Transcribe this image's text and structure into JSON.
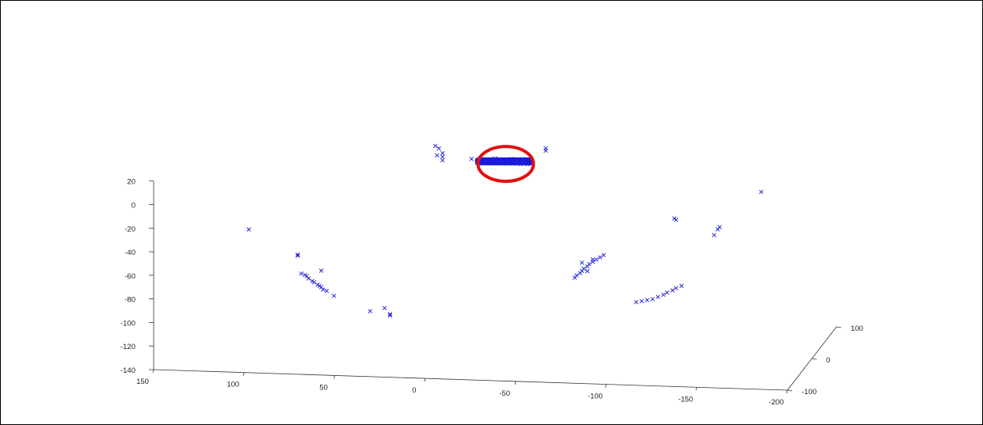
{
  "colors": {
    "marker": "#1a1adb",
    "highlight": "#e01010",
    "axis": "#333333"
  },
  "chart_data": {
    "type": "scatter",
    "projection": "3d",
    "marker": "x",
    "grid": false,
    "axes": {
      "x": {
        "lim": [
          -200,
          150
        ],
        "reversed": true,
        "ticks": [
          150,
          100,
          50,
          0,
          -50,
          -100,
          -150,
          -200
        ]
      },
      "y": {
        "lim": [
          -100,
          100
        ],
        "ticks": [
          100,
          0,
          -100
        ]
      },
      "z": {
        "lim": [
          -140,
          20
        ],
        "ticks": [
          20,
          0,
          -20,
          -40,
          -60,
          -80,
          -100,
          -120,
          -140
        ]
      }
    },
    "highlight": {
      "shape": "ellipse",
      "description_of_cluster": "dense cluster"
    },
    "points": [
      {
        "x": 8,
        "y": 0,
        "z": 30
      },
      {
        "x": 6,
        "y": 0,
        "z": 28
      },
      {
        "x": 4,
        "y": 0,
        "z": 24
      },
      {
        "x": 7,
        "y": 0,
        "z": 22
      },
      {
        "x": 4,
        "y": 0,
        "z": 21
      },
      {
        "x": 4,
        "y": 0,
        "z": 18
      },
      {
        "x": -12,
        "y": 0,
        "z": 20
      },
      {
        "x": -15,
        "y": 0,
        "z": 19
      },
      {
        "x": -18,
        "y": 0,
        "z": 19
      },
      {
        "x": -21,
        "y": 0,
        "z": 19
      },
      {
        "x": -24,
        "y": 0,
        "z": 19
      },
      {
        "x": -27,
        "y": 0,
        "z": 19
      },
      {
        "x": -30,
        "y": 0,
        "z": 19
      },
      {
        "x": -33,
        "y": 0,
        "z": 19
      },
      {
        "x": -36,
        "y": 0,
        "z": 19
      },
      {
        "x": -39,
        "y": 0,
        "z": 19
      },
      {
        "x": -42,
        "y": 0,
        "z": 19
      },
      {
        "x": -45,
        "y": 0,
        "z": 19
      },
      {
        "x": -15,
        "y": 0,
        "z": 17
      },
      {
        "x": -19,
        "y": 0,
        "z": 17
      },
      {
        "x": -23,
        "y": 0,
        "z": 17
      },
      {
        "x": -27,
        "y": 0,
        "z": 17
      },
      {
        "x": -31,
        "y": 0,
        "z": 17
      },
      {
        "x": -35,
        "y": 0,
        "z": 17
      },
      {
        "x": -39,
        "y": 0,
        "z": 17
      },
      {
        "x": -43,
        "y": 0,
        "z": 17
      },
      {
        "x": -46,
        "y": 0,
        "z": 18
      },
      {
        "x": -17,
        "y": 0,
        "z": 21
      },
      {
        "x": -25,
        "y": 0,
        "z": 21
      },
      {
        "x": -34,
        "y": 0,
        "z": 21
      },
      {
        "x": -40,
        "y": 0,
        "z": 21
      },
      {
        "x": -44,
        "y": 0,
        "z": 20
      },
      {
        "x": -53,
        "y": 0,
        "z": 31
      },
      {
        "x": -53,
        "y": 0,
        "z": 29
      },
      {
        "x": -172,
        "y": 0,
        "z": 0
      },
      {
        "x": -124,
        "y": 0,
        "z": -25
      },
      {
        "x": -125,
        "y": 0,
        "z": -26
      },
      {
        "x": -149,
        "y": 0,
        "z": -31
      },
      {
        "x": -148,
        "y": 0,
        "z": -33
      },
      {
        "x": -146,
        "y": 0,
        "z": -38
      },
      {
        "x": 111,
        "y": 0,
        "z": -46
      },
      {
        "x": 84,
        "y": 0,
        "z": -66
      },
      {
        "x": 84,
        "y": 0,
        "z": -67
      },
      {
        "x": 82,
        "y": 0,
        "z": -82
      },
      {
        "x": 80,
        "y": 0,
        "z": -83
      },
      {
        "x": 79,
        "y": 0,
        "z": -84
      },
      {
        "x": 78,
        "y": 0,
        "z": -86
      },
      {
        "x": 76,
        "y": 0,
        "z": -88
      },
      {
        "x": 75,
        "y": 0,
        "z": -89
      },
      {
        "x": 73,
        "y": 0,
        "z": -91
      },
      {
        "x": 72,
        "y": 0,
        "z": -92
      },
      {
        "x": 71,
        "y": 0,
        "z": -93
      },
      {
        "x": 70,
        "y": 0,
        "z": -95
      },
      {
        "x": 68,
        "y": 0,
        "z": -96
      },
      {
        "x": 71,
        "y": 0,
        "z": -79
      },
      {
        "x": 64,
        "y": 0,
        "z": -100
      },
      {
        "x": 44,
        "y": 0,
        "z": -112
      },
      {
        "x": 36,
        "y": 0,
        "z": -109
      },
      {
        "x": 33,
        "y": 0,
        "z": -114
      },
      {
        "x": 33,
        "y": 0,
        "z": -115
      },
      {
        "x": -69,
        "y": 0,
        "z": -78
      },
      {
        "x": -70,
        "y": 0,
        "z": -76
      },
      {
        "x": -72,
        "y": 0,
        "z": -74
      },
      {
        "x": -73,
        "y": 0,
        "z": -72
      },
      {
        "x": -74,
        "y": 0,
        "z": -70
      },
      {
        "x": -76,
        "y": 0,
        "z": -68
      },
      {
        "x": -77,
        "y": 0,
        "z": -66
      },
      {
        "x": -79,
        "y": 0,
        "z": -64
      },
      {
        "x": -81,
        "y": 0,
        "z": -62
      },
      {
        "x": -83,
        "y": 0,
        "z": -60
      },
      {
        "x": -85,
        "y": 0,
        "z": -58
      },
      {
        "x": -73,
        "y": 0,
        "z": -65
      },
      {
        "x": -79,
        "y": 0,
        "z": -62
      },
      {
        "x": -76,
        "y": 0,
        "z": -72
      },
      {
        "x": -103,
        "y": 0,
        "z": -97
      },
      {
        "x": -106,
        "y": 0,
        "z": -96
      },
      {
        "x": -109,
        "y": 0,
        "z": -95
      },
      {
        "x": -112,
        "y": 0,
        "z": -94
      },
      {
        "x": -115,
        "y": 0,
        "z": -92
      },
      {
        "x": -118,
        "y": 0,
        "z": -90
      },
      {
        "x": -120,
        "y": 0,
        "z": -88
      },
      {
        "x": -123,
        "y": 0,
        "z": -86
      },
      {
        "x": -125,
        "y": 0,
        "z": -84
      },
      {
        "x": -128,
        "y": 0,
        "z": -82
      }
    ]
  }
}
